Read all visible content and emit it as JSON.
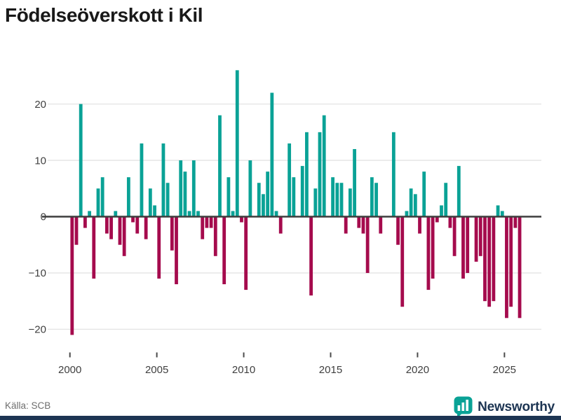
{
  "title": "Födelseöverskott i Kil",
  "source": "Källa: SCB",
  "branding": {
    "name": "Newsworthy",
    "navy": "#1d3553",
    "teal": "#0aa296"
  },
  "chart_data": {
    "type": "bar",
    "title": "Födelseöverskott i Kil",
    "period": "quarterly",
    "x_start_year": 2000,
    "values": [
      -21,
      -5,
      20,
      -2,
      1,
      -11,
      5,
      7,
      -3,
      -4,
      1,
      -5,
      -7,
      7,
      -1,
      -3,
      13,
      -4,
      5,
      2,
      -11,
      13,
      6,
      -6,
      -12,
      10,
      8,
      1,
      10,
      1,
      -4,
      -2,
      -2,
      -7,
      18,
      -12,
      7,
      1,
      26,
      -1,
      -13,
      10,
      0,
      6,
      4,
      8,
      22,
      1,
      -3,
      0,
      13,
      7,
      0,
      9,
      15,
      -14,
      5,
      15,
      18,
      0,
      7,
      6,
      6,
      -3,
      5,
      12,
      -2,
      -3,
      -10,
      7,
      6,
      -3,
      0,
      0,
      15,
      -5,
      -16,
      1,
      5,
      4,
      -3,
      8,
      -13,
      -11,
      -1,
      2,
      6,
      -2,
      -7,
      9,
      -11,
      -10,
      0,
      -8,
      -7,
      -15,
      -16,
      -15,
      2,
      1,
      -18,
      -16,
      -2,
      -18
    ],
    "x_ticks": [
      2000,
      2005,
      2010,
      2015,
      2020,
      2025
    ],
    "x_tick_labels": [
      "2000",
      "2005",
      "2010",
      "2015",
      "2020",
      "2025"
    ],
    "y_ticks": [
      20,
      10,
      0,
      -10,
      -20
    ],
    "y_tick_labels": [
      "20",
      "10",
      "0",
      "−10",
      "−20"
    ],
    "ylim": [
      -22,
      27
    ],
    "grid": true,
    "legend": "none",
    "positive_color": "#0aa296",
    "negative_color": "#a50b4d",
    "gridline_color": "#e3e3e3",
    "axis_line_color": "#3d3d3d",
    "tick_color": "#4a4a4a",
    "label_color": "#3f3f3f"
  }
}
